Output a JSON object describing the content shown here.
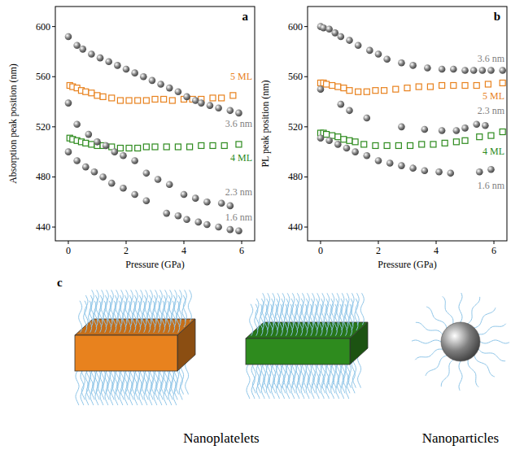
{
  "chart_data": [
    {
      "type": "scatter",
      "title": "a",
      "x_label": "Pressure (GPa)",
      "y_label": "Absorption peak position (nm)",
      "xlim": [
        -0.45,
        6.45
      ],
      "ylim": [
        429,
        616
      ],
      "xticks": [
        0,
        2,
        4,
        6
      ],
      "yticks": [
        440,
        480,
        520,
        560,
        600
      ],
      "grid": false,
      "series": [
        {
          "name": "5 ML",
          "color": "#e8821e",
          "marker": "square",
          "x": [
            0.05,
            0.15,
            0.3,
            0.45,
            0.6,
            0.8,
            1.0,
            1.2,
            1.5,
            1.8,
            2.1,
            2.4,
            2.7,
            3.0,
            3.3,
            3.6,
            4.0,
            4.3,
            4.6,
            5.0,
            5.3,
            5.7
          ],
          "values": [
            553,
            552,
            551,
            549,
            548,
            547,
            545,
            544,
            543,
            541,
            541,
            541,
            541,
            542,
            542,
            541,
            542,
            542,
            542,
            543,
            543,
            545
          ]
        },
        {
          "name": "4 ML",
          "color": "#2e8b1e",
          "marker": "square",
          "x": [
            0.05,
            0.15,
            0.3,
            0.45,
            0.6,
            0.8,
            1.0,
            1.2,
            1.5,
            1.8,
            2.1,
            2.4,
            2.7,
            3.0,
            3.4,
            3.8,
            4.2,
            4.6,
            5.0,
            5.4,
            5.9
          ],
          "values": [
            511,
            510,
            509,
            508,
            507,
            506,
            505,
            505,
            504,
            503,
            503,
            503,
            504,
            504,
            504,
            504,
            504,
            505,
            505,
            505,
            506
          ]
        },
        {
          "name": "3.6 nm",
          "color": "#7f7f7f",
          "marker": "sphere",
          "x": [
            0,
            0.3,
            0.5,
            0.8,
            1.1,
            1.4,
            1.7,
            2.0,
            2.3,
            2.6,
            2.9,
            3.2,
            3.5,
            3.8,
            4.1,
            4.4,
            4.6,
            4.9,
            5.2,
            5.6,
            5.9
          ],
          "values": [
            592,
            585,
            582,
            578,
            575,
            572,
            569,
            566,
            563,
            560,
            557,
            554,
            551,
            548,
            544,
            541,
            539,
            537,
            535,
            533,
            531
          ]
        },
        {
          "name": "2.3 nm",
          "color": "#7f7f7f",
          "marker": "sphere",
          "x": [
            0,
            0.3,
            0.7,
            1.0,
            1.3,
            1.6,
            1.9,
            2.3,
            2.7,
            3.1,
            3.5,
            4.0,
            4.4,
            4.8,
            5.3,
            5.6
          ],
          "values": [
            539,
            522,
            514,
            508,
            505,
            500,
            497,
            493,
            483,
            478,
            474,
            466,
            463,
            460,
            459,
            457
          ]
        },
        {
          "name": "1.6 nm",
          "color": "#7f7f7f",
          "marker": "sphere",
          "x": [
            0,
            0.3,
            0.6,
            0.9,
            1.2,
            1.5,
            1.9,
            2.3,
            2.7,
            3.4,
            3.8,
            4.1,
            4.5,
            4.8,
            5.2,
            5.6,
            5.9
          ],
          "values": [
            500,
            493,
            488,
            484,
            480,
            475,
            471,
            466,
            461,
            451,
            449,
            446,
            444,
            442,
            440,
            438,
            437
          ]
        }
      ]
    },
    {
      "type": "scatter",
      "title": "b",
      "x_label": "Pressure (GPa)",
      "y_label": "PL peak position (nm)",
      "xlim": [
        -0.45,
        6.45
      ],
      "ylim": [
        429,
        616
      ],
      "xticks": [
        0,
        2,
        4,
        6
      ],
      "yticks": [
        440,
        480,
        520,
        560,
        600
      ],
      "grid": false,
      "series": [
        {
          "name": "5 ML",
          "color": "#e8821e",
          "marker": "square",
          "x": [
            0,
            0.1,
            0.2,
            0.4,
            0.6,
            0.8,
            1.0,
            1.3,
            1.6,
            1.9,
            2.2,
            2.6,
            3.0,
            3.4,
            3.8,
            4.2,
            4.6,
            5.0,
            5.4,
            5.8,
            6.3
          ],
          "values": [
            555,
            555,
            554,
            553,
            552,
            551,
            549,
            548,
            548,
            549,
            549,
            550,
            551,
            552,
            552,
            553,
            553,
            553,
            553,
            554,
            555
          ]
        },
        {
          "name": "4 ML",
          "color": "#2e8b1e",
          "marker": "square",
          "x": [
            0,
            0.1,
            0.2,
            0.4,
            0.6,
            0.8,
            1.0,
            1.2,
            1.5,
            1.9,
            2.3,
            2.7,
            3.1,
            3.5,
            3.9,
            4.3,
            4.7,
            5.0,
            5.5,
            5.9,
            6.3
          ],
          "values": [
            515,
            515,
            514,
            513,
            512,
            510,
            509,
            508,
            506,
            505,
            505,
            505,
            505,
            506,
            506,
            507,
            508,
            509,
            512,
            513,
            516
          ]
        },
        {
          "name": "3.6 nm",
          "color": "#7f7f7f",
          "marker": "sphere",
          "x": [
            0,
            0.1,
            0.3,
            0.5,
            0.7,
            1.0,
            1.3,
            1.7,
            2.0,
            2.3,
            2.8,
            3.2,
            3.7,
            4.2,
            4.6,
            5.0,
            5.3,
            5.6,
            5.9,
            6.3
          ],
          "values": [
            600,
            599,
            598,
            595,
            592,
            589,
            585,
            581,
            578,
            574,
            571,
            569,
            567,
            566,
            566,
            565,
            565,
            565,
            565,
            565
          ]
        },
        {
          "name": "2.3 nm",
          "color": "#7f7f7f",
          "marker": "sphere",
          "x": [
            0,
            0.7,
            1.0,
            1.6,
            2.8,
            3.6,
            4.2,
            4.7,
            5.0,
            5.4,
            5.7
          ],
          "values": [
            550,
            538,
            533,
            527,
            520,
            518,
            517,
            517,
            519,
            522,
            521
          ]
        },
        {
          "name": "1.6 nm",
          "color": "#7f7f7f",
          "marker": "sphere",
          "x": [
            0,
            0.3,
            0.6,
            0.9,
            1.2,
            1.6,
            2.0,
            2.4,
            2.8,
            3.2,
            3.6,
            4.1,
            4.5,
            5.5,
            5.9
          ],
          "values": [
            511,
            509,
            506,
            503,
            500,
            497,
            493,
            491,
            489,
            487,
            485,
            484,
            483,
            484,
            486
          ]
        }
      ]
    }
  ],
  "schematic": {
    "label": "c",
    "captions": [
      "Nanoplatelets",
      "Nanoparticles"
    ]
  }
}
